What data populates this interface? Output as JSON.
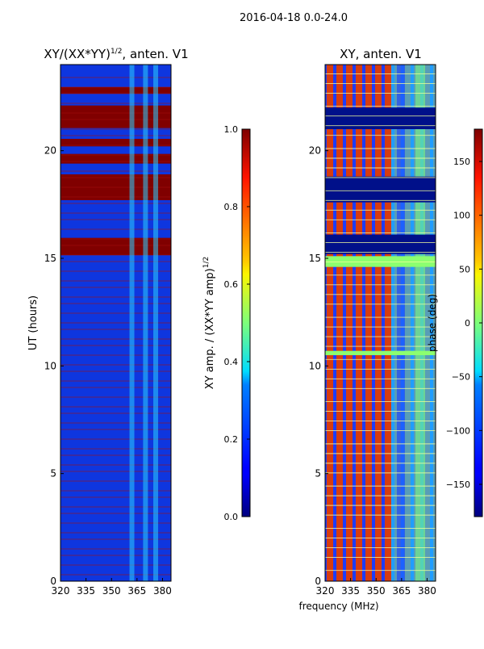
{
  "suptitle": "2016-04-18 0.0-24.0",
  "chart_data": [
    {
      "type": "heatmap",
      "id": "amp",
      "title_main": "XY/(XX*YY)",
      "title_sup": "1/2",
      "title_suffix": ", anten. V1",
      "ylabel": "UT (hours)",
      "xlabel": "",
      "xlim": [
        320,
        385
      ],
      "ylim": [
        0,
        24
      ],
      "xticks": [
        320,
        335,
        350,
        365,
        380
      ],
      "yticks": [
        0,
        5,
        10,
        15,
        20
      ],
      "bad_color": "#800000",
      "flagged_blocks": [
        [
          15.15,
          15.95
        ],
        [
          17.7,
          18.9
        ],
        [
          19.4,
          19.85
        ],
        [
          20.2,
          20.55
        ],
        [
          21.05,
          22.1
        ],
        [
          22.65,
          22.95
        ]
      ],
      "rfi_channels_mhz": [
        362,
        370,
        376
      ],
      "colorbar": {
        "label": "XY amp. / (XX*YY amp)",
        "label_sup": "1/2",
        "range": [
          0.0,
          1.0
        ],
        "ticks": [
          "0.0",
          "0.2",
          "0.4",
          "0.6",
          "0.8",
          "1.0"
        ]
      }
    },
    {
      "type": "heatmap",
      "id": "phase",
      "title": "XY, anten. V1",
      "ylabel": "",
      "xlabel": "frequency (MHz)",
      "xlim": [
        320,
        385
      ],
      "ylim": [
        0,
        24
      ],
      "xticks": [
        320,
        335,
        350,
        365,
        380
      ],
      "yticks": [
        0,
        5,
        10,
        15,
        20
      ],
      "dark_blocks": [
        [
          15.2,
          16.1
        ],
        [
          17.6,
          18.8
        ],
        [
          21.0,
          22.0
        ]
      ],
      "green_blocks": [
        [
          14.6,
          15.1
        ],
        [
          10.5,
          10.7
        ]
      ],
      "colorbar": {
        "label": "phase (deg)",
        "range": [
          -180,
          180
        ],
        "ticks": [
          "−150",
          "−100",
          "−50",
          "0",
          "50",
          "100",
          "150"
        ]
      }
    }
  ]
}
